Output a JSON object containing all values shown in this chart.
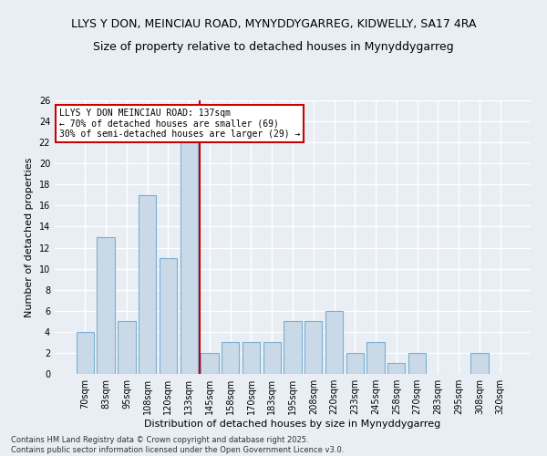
{
  "title_line1": "LLYS Y DON, MEINCIAU ROAD, MYNYDDYGARREG, KIDWELLY, SA17 4RA",
  "title_line2": "Size of property relative to detached houses in Mynyddygarreg",
  "xlabel": "Distribution of detached houses by size in Mynyddygarreg",
  "ylabel": "Number of detached properties",
  "categories": [
    "70sqm",
    "83sqm",
    "95sqm",
    "108sqm",
    "120sqm",
    "133sqm",
    "145sqm",
    "158sqm",
    "170sqm",
    "183sqm",
    "195sqm",
    "208sqm",
    "220sqm",
    "233sqm",
    "245sqm",
    "258sqm",
    "270sqm",
    "283sqm",
    "295sqm",
    "308sqm",
    "320sqm"
  ],
  "values": [
    4,
    13,
    5,
    17,
    11,
    22,
    2,
    3,
    3,
    3,
    5,
    5,
    6,
    2,
    3,
    1,
    2,
    0,
    0,
    2,
    0
  ],
  "bar_color": "#c9d9e8",
  "bar_edge_color": "#7bafd4",
  "vline_index": 5,
  "annotation_text": "LLYS Y DON MEINCIAU ROAD: 137sqm\n← 70% of detached houses are smaller (69)\n30% of semi-detached houses are larger (29) →",
  "annotation_box_color": "#ffffff",
  "annotation_box_edge_color": "#cc0000",
  "vline_color": "#cc0000",
  "ylim": [
    0,
    26
  ],
  "yticks": [
    0,
    2,
    4,
    6,
    8,
    10,
    12,
    14,
    16,
    18,
    20,
    22,
    24,
    26
  ],
  "background_color": "#e8eef4",
  "grid_color": "#ffffff",
  "footnote": "Contains HM Land Registry data © Crown copyright and database right 2025.\nContains public sector information licensed under the Open Government Licence v3.0.",
  "title_fontsize": 9,
  "axis_label_fontsize": 8,
  "tick_fontsize": 7,
  "annotation_fontsize": 7,
  "footnote_fontsize": 6
}
